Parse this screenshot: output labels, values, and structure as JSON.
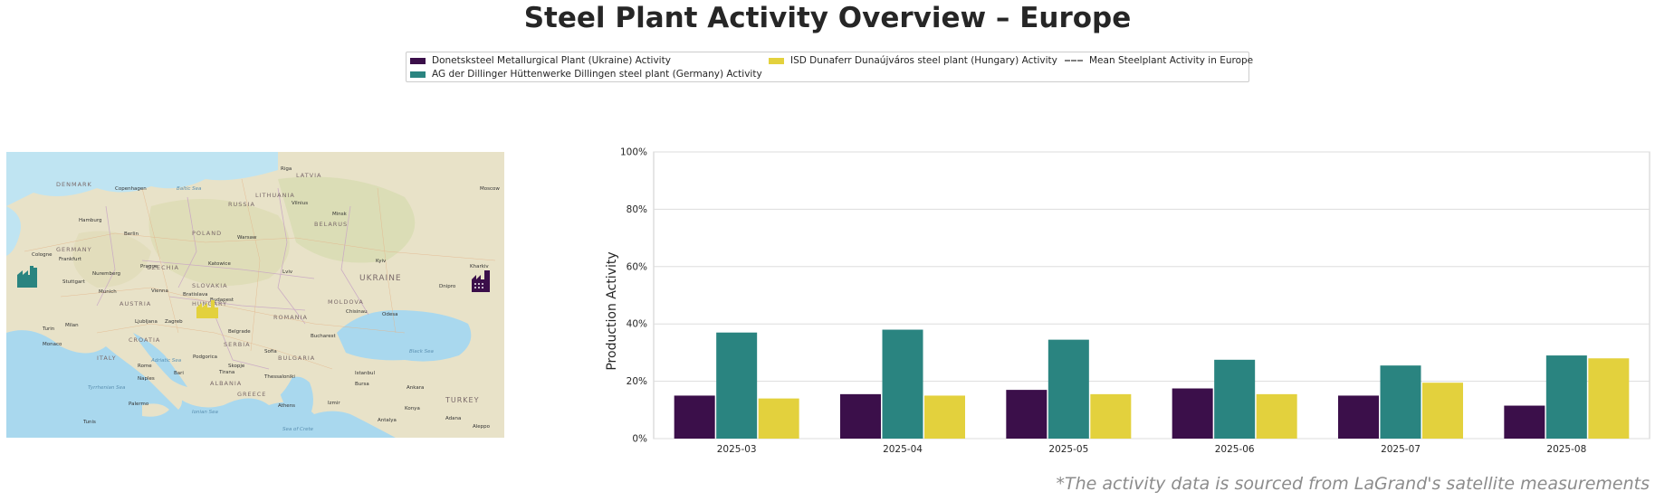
{
  "title": "Steel Plant Activity Overview – Europe",
  "legend": {
    "items": [
      {
        "label": "Donetsksteel Metallurgical Plant (Ukraine) Activity",
        "color": "#3b0f4a",
        "kind": "bar"
      },
      {
        "label": "AG der Dillinger Hüttenwerke Dillingen steel plant (Germany) Activity",
        "color": "#2a8480",
        "kind": "bar"
      },
      {
        "label": "ISD Dunaferr Dunaújváros steel plant (Hungary) Activity",
        "color": "#e3d13d",
        "kind": "bar"
      },
      {
        "label": "Mean Steelplant Activity in Europe",
        "color": "#808080",
        "kind": "dashed-line"
      }
    ]
  },
  "map": {
    "labels": {
      "countries": [
        "DENMARK",
        "LATVIA",
        "LITHUANIA",
        "BELARUS",
        "POLAND",
        "GERMANY",
        "CZECHIA",
        "SLOVAKIA",
        "AUSTRIA",
        "HUNGARY",
        "UKRAINE",
        "MOLDOVA",
        "ROMANIA",
        "SERBIA",
        "CROATIA",
        "BULGARIA",
        "ITALY",
        "GREECE",
        "TURKEY",
        "RUSSIA",
        "ALBANIA"
      ],
      "cities": [
        "Copenhagen",
        "Riga",
        "Hamburg",
        "Berlin",
        "Minsk",
        "Vilnius",
        "Warsaw",
        "Prague",
        "Vienna",
        "Budapest",
        "Kyiv",
        "Dnipro",
        "Kharkiv",
        "Belgrade",
        "Bucharest",
        "Chisinau",
        "Odesa",
        "Sofia",
        "Rome",
        "Naples",
        "Istanbul",
        "Athens",
        "Ankara",
        "Milan",
        "Munich",
        "Zagreb",
        "Bratislava",
        "Lviv",
        "Frankfurt",
        "Nuremberg",
        "Stuttgart",
        "Monaco",
        "Tunis",
        "Palermo",
        "Izmir",
        "Bursa",
        "Konya",
        "Adana",
        "Antalya",
        "Aleppo",
        "Moscow",
        "Katowice",
        "Skopje",
        "Tirana",
        "Podgorica",
        "Thessaloniki",
        "Bari",
        "Turin",
        "Ljubljana",
        "Cologne"
      ],
      "seas": [
        "Baltic Sea",
        "Black Sea",
        "Adriatic Sea",
        "Tyrrhenian Sea",
        "Ionian Sea",
        "Sea of Crete"
      ]
    },
    "markers": [
      {
        "name": "Dillingen",
        "color": "#2a8480",
        "icon": "factory-icon"
      },
      {
        "name": "Dunaújváros",
        "color": "#e3d13d",
        "icon": "factory-icon"
      },
      {
        "name": "Donetsk",
        "color": "#3b0f4a",
        "icon": "factory-icon"
      }
    ]
  },
  "chart_data": {
    "type": "bar",
    "categories": [
      "2025-03",
      "2025-04",
      "2025-05",
      "2025-06",
      "2025-07",
      "2025-08"
    ],
    "series": [
      {
        "name": "Donetsksteel Metallurgical Plant (Ukraine) Activity",
        "color": "#3b0f4a",
        "values": [
          15,
          15.5,
          17,
          17.5,
          15,
          11.5
        ]
      },
      {
        "name": "AG der Dillinger Hüttenwerke Dillingen steel plant (Germany) Activity",
        "color": "#2a8480",
        "values": [
          37,
          38,
          34.5,
          27.5,
          25.5,
          29
        ]
      },
      {
        "name": "ISD Dunaferr Dunaújváros steel plant (Hungary) Activity",
        "color": "#e3d13d",
        "values": [
          14,
          15,
          15.5,
          15.5,
          19.5,
          28
        ]
      }
    ],
    "ylabel": "Production Activity",
    "xlabel": "",
    "ylim": [
      0,
      100
    ],
    "yticks": [
      "0%",
      "20%",
      "40%",
      "60%",
      "80%",
      "100%"
    ],
    "grid": true
  },
  "footnote": "*The activity data is sourced from LaGrand's satellite measurements"
}
